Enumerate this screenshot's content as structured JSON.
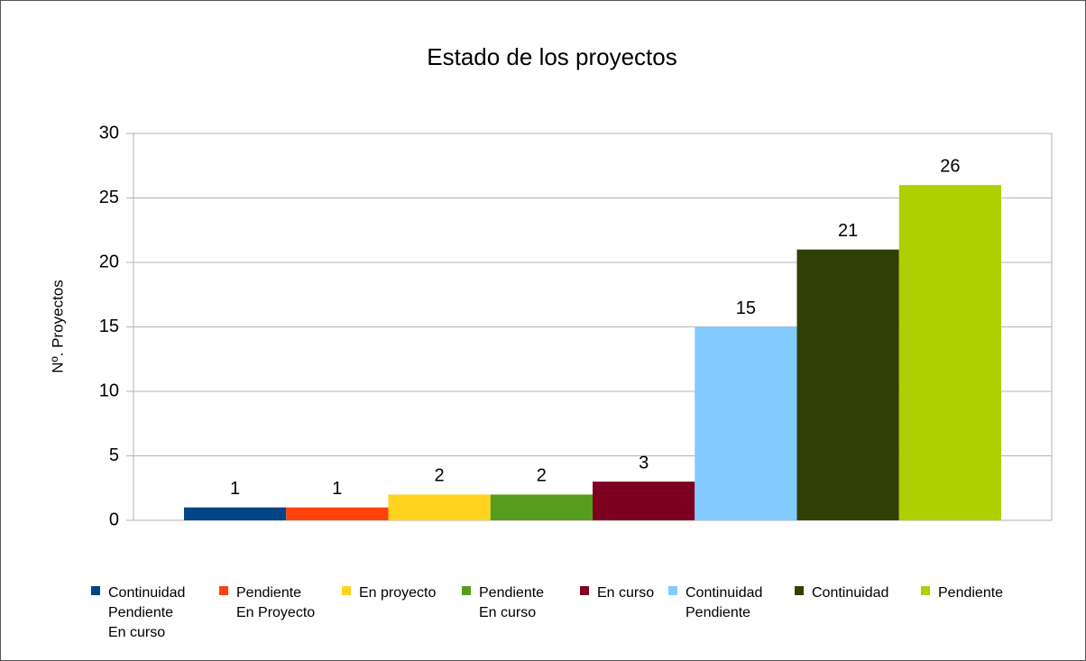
{
  "chart_data": {
    "type": "bar",
    "title": "Estado de los proyectos",
    "y_label": "Nº. Proyectos",
    "categories": [
      null
    ],
    "series": [
      {
        "name": "Continuidad\nPendiente\nEn curso",
        "color": "#004586",
        "values": [
          1
        ]
      },
      {
        "name": "Pendiente\nEn Proyecto",
        "color": "#ff420e",
        "values": [
          1
        ]
      },
      {
        "name": "En proyecto",
        "color": "#ffd320",
        "values": [
          2
        ]
      },
      {
        "name": "Pendiente\nEn curso",
        "color": "#579d1c",
        "values": [
          2
        ]
      },
      {
        "name": "En curso",
        "color": "#7e0021",
        "values": [
          3
        ]
      },
      {
        "name": "Continuidad\nPendiente",
        "color": "#83caff",
        "values": [
          15
        ]
      },
      {
        "name": "Continuidad",
        "color": "#314004",
        "values": [
          21
        ]
      },
      {
        "name": "Pendiente",
        "color": "#aecf00",
        "values": [
          26
        ]
      }
    ],
    "ylim": [
      0,
      30
    ],
    "yticks": [
      0,
      5,
      10,
      15,
      20,
      25,
      30
    ],
    "grid": true,
    "legend": "bottom"
  }
}
